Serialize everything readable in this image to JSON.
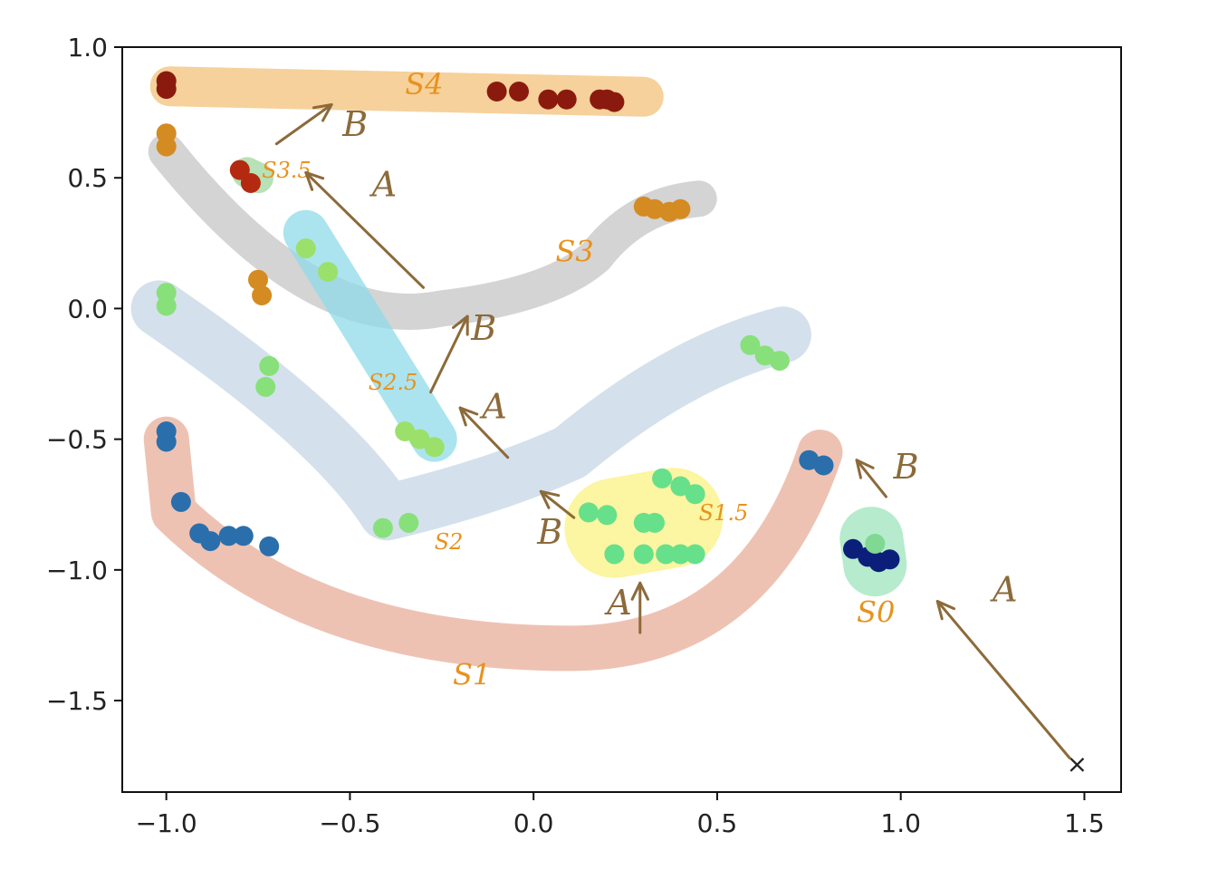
{
  "chart_data": {
    "type": "scatter",
    "title": "",
    "xlabel": "",
    "ylabel": "",
    "xlim": [
      -1.12,
      1.6
    ],
    "ylim": [
      -1.85,
      1.0
    ],
    "x_ticks": [
      -1.0,
      -0.5,
      0.0,
      0.5,
      1.0,
      1.5
    ],
    "x_tick_labels": [
      "−1.0",
      "−0.5",
      "0.0",
      "0.5",
      "1.0",
      "1.5"
    ],
    "y_ticks": [
      1.0,
      0.5,
      0.0,
      -0.5,
      -1.0,
      -1.5
    ],
    "y_tick_labels": [
      "1.0",
      "0.5",
      "0.0",
      "−0.5",
      "−1.0",
      "−1.5"
    ],
    "grid": false,
    "series": [
      {
        "color": "#8b1a0e",
        "points": [
          [
            -1.0,
            0.87
          ],
          [
            -1.0,
            0.84
          ],
          [
            -0.1,
            0.83
          ],
          [
            -0.04,
            0.83
          ],
          [
            0.04,
            0.8
          ],
          [
            0.09,
            0.8
          ],
          [
            0.18,
            0.8
          ],
          [
            0.2,
            0.8
          ],
          [
            0.22,
            0.79
          ]
        ]
      },
      {
        "color": "#b32a10",
        "points": [
          [
            -0.8,
            0.53
          ],
          [
            -0.77,
            0.48
          ]
        ]
      },
      {
        "color": "#d48b22",
        "points": [
          [
            -1.0,
            0.67
          ],
          [
            -1.0,
            0.62
          ],
          [
            -0.75,
            0.11
          ],
          [
            -0.74,
            0.05
          ],
          [
            0.3,
            0.39
          ],
          [
            0.33,
            0.38
          ],
          [
            0.37,
            0.37
          ],
          [
            0.4,
            0.38
          ]
        ]
      },
      {
        "color": "#9be06a",
        "points": [
          [
            -0.62,
            0.23
          ],
          [
            -0.56,
            0.14
          ],
          [
            -0.35,
            -0.47
          ],
          [
            -0.31,
            -0.5
          ],
          [
            -0.27,
            -0.53
          ]
        ]
      },
      {
        "color": "#88e07a",
        "points": [
          [
            -1.0,
            0.06
          ],
          [
            -1.0,
            0.01
          ],
          [
            -0.72,
            -0.22
          ],
          [
            -0.73,
            -0.3
          ],
          [
            -0.41,
            -0.84
          ],
          [
            -0.34,
            -0.82
          ],
          [
            0.59,
            -0.14
          ],
          [
            0.63,
            -0.18
          ],
          [
            0.67,
            -0.2
          ]
        ]
      },
      {
        "color": "#66e08a",
        "points": [
          [
            0.15,
            -0.78
          ],
          [
            0.2,
            -0.79
          ],
          [
            0.35,
            -0.65
          ],
          [
            0.4,
            -0.68
          ],
          [
            0.44,
            -0.71
          ],
          [
            0.3,
            -0.82
          ],
          [
            0.33,
            -0.82
          ],
          [
            0.22,
            -0.94
          ],
          [
            0.3,
            -0.94
          ],
          [
            0.36,
            -0.94
          ],
          [
            0.4,
            -0.94
          ],
          [
            0.44,
            -0.94
          ]
        ]
      },
      {
        "color": "#2a6fab",
        "points": [
          [
            -1.0,
            -0.47
          ],
          [
            -1.0,
            -0.51
          ],
          [
            -0.96,
            -0.74
          ],
          [
            -0.91,
            -0.86
          ],
          [
            -0.88,
            -0.89
          ],
          [
            -0.83,
            -0.87
          ],
          [
            -0.79,
            -0.87
          ],
          [
            -0.72,
            -0.91
          ],
          [
            0.75,
            -0.58
          ],
          [
            0.79,
            -0.6
          ]
        ]
      },
      {
        "color": "#0b1f7a",
        "points": [
          [
            0.87,
            -0.92
          ],
          [
            0.91,
            -0.95
          ],
          [
            0.94,
            -0.97
          ],
          [
            0.97,
            -0.96
          ]
        ]
      },
      {
        "color": "#80d892",
        "points": [
          [
            0.93,
            -0.9
          ]
        ]
      }
    ],
    "regions": [
      {
        "label": "S4",
        "color": "#f3c27a"
      },
      {
        "label": "S3.5",
        "color": "#9fd79f"
      },
      {
        "label": "S3",
        "color": "#c6c6c6"
      },
      {
        "label": "S2.5",
        "color": "#8fdbe8"
      },
      {
        "label": "S2",
        "color": "#c6d7e6"
      },
      {
        "label": "S1.5",
        "color": "#fbf282"
      },
      {
        "label": "S1",
        "color": "#e8ad99"
      },
      {
        "label": "S0",
        "color": "#9ee4bc"
      }
    ],
    "annotations": [
      {
        "text": "B",
        "color": "#8c6a3a"
      },
      {
        "text": "A",
        "color": "#8c6a3a"
      },
      {
        "text": "B",
        "color": "#8c6a3a"
      },
      {
        "text": "A",
        "color": "#8c6a3a"
      },
      {
        "text": "B",
        "color": "#8c6a3a"
      },
      {
        "text": "A",
        "color": "#8c6a3a"
      },
      {
        "text": "B",
        "color": "#8c6a3a"
      },
      {
        "text": "A",
        "color": "#8c6a3a"
      }
    ],
    "start_marker": {
      "x": 1.48,
      "y": -1.74,
      "symbol": "×",
      "color": "#222222"
    },
    "region_label_color": "#e8921e",
    "arrow_color": "#8c6a3a"
  }
}
